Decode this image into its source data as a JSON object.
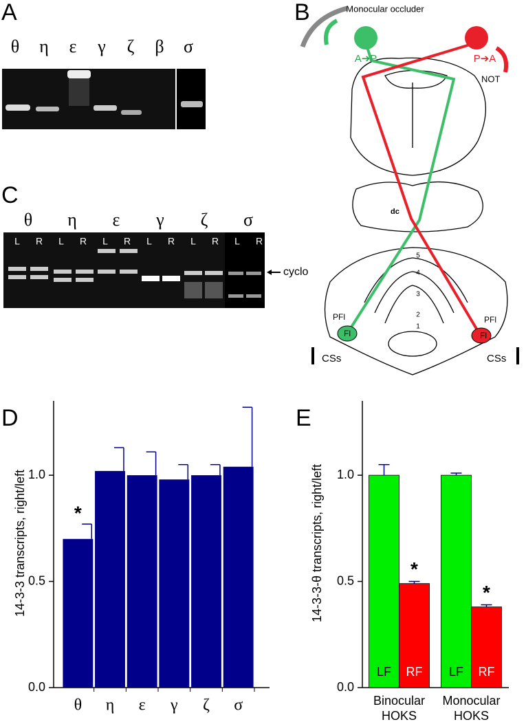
{
  "panels": {
    "A": {
      "label": "A",
      "lanes": [
        "θ",
        "η",
        "ε",
        "γ",
        "ζ",
        "β",
        "σ"
      ]
    },
    "B": {
      "label": "B",
      "occluder": "Monocular occluder",
      "left_eye": "A➔P",
      "right_eye": "P➔A",
      "not": "NOT",
      "dc": "dc",
      "lobules": [
        "5",
        "4",
        "3",
        "2",
        "1"
      ],
      "pfl_left": "PFl",
      "fl_left": "Fl",
      "pfl_right": "PFl",
      "fl_right": "Fl",
      "css_left": "CSs",
      "css_right": "CSs"
    },
    "C": {
      "label": "C",
      "lanes": [
        "θ",
        "η",
        "ε",
        "γ",
        "ζ",
        "σ"
      ],
      "sides": [
        "L",
        "R"
      ],
      "marker": "cyclo"
    }
  },
  "chart_data": [
    {
      "type": "bar",
      "panel_label": "D",
      "ylabel": "14-3-3 transcripts, right/left",
      "categories": [
        "θ",
        "η",
        "ε",
        "γ",
        "ζ",
        "σ"
      ],
      "values": [
        0.7,
        1.02,
        1.0,
        0.98,
        1.0,
        1.04
      ],
      "errors": [
        0.07,
        0.11,
        0.11,
        0.07,
        0.05,
        0.28
      ],
      "significance": [
        "*",
        null,
        null,
        null,
        null,
        null
      ],
      "color": "#00008b",
      "ylim": [
        0,
        1.35
      ],
      "yticks": [
        {
          "value": 0,
          "label": "0.0"
        },
        0.5,
        {
          "value": 1,
          "label": "1.0"
        }
      ]
    },
    {
      "type": "grouped_bar",
      "panel_label": "E",
      "ylabel": "14-3-3-θ transcripts, right/left",
      "categories": [
        [
          "Binocular",
          "HOKS"
        ],
        [
          "Monocular",
          "HOKS"
        ]
      ],
      "series": [
        {
          "name": "LF",
          "color": "#00ee00",
          "values": [
            1.0,
            1.0
          ],
          "errors": [
            0.05,
            0.01
          ],
          "significance": [
            null,
            null
          ]
        },
        {
          "name": "RF",
          "color": "#ff0000",
          "values": [
            0.49,
            0.38
          ],
          "errors": [
            0.01,
            0.01
          ],
          "significance": [
            "*",
            "*"
          ]
        }
      ],
      "ylim": [
        0,
        1.35
      ],
      "yticks": [
        {
          "value": 0,
          "label": "0.0"
        },
        0.5,
        {
          "value": 1,
          "label": "1.0"
        }
      ]
    }
  ]
}
